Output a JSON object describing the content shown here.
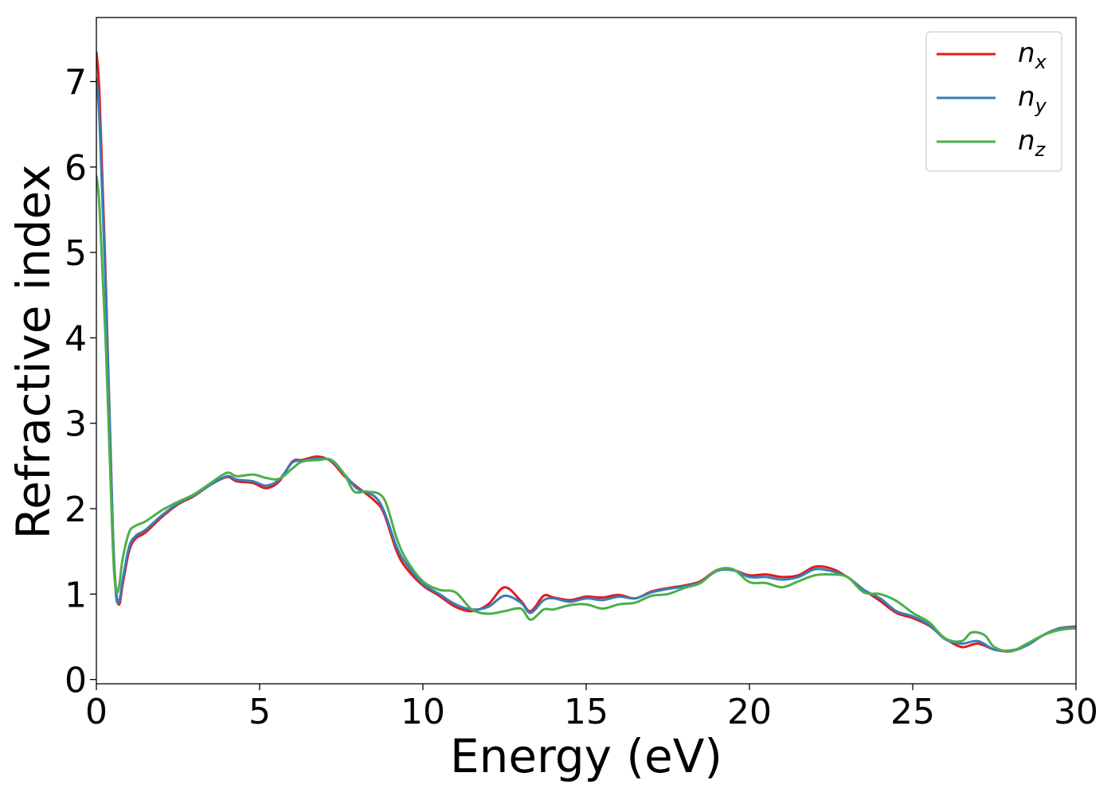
{
  "chart_data": {
    "type": "line",
    "xlabel": "Energy (eV)",
    "ylabel": "Refractive index",
    "xlim": [
      0,
      30
    ],
    "ylim": [
      -0.05,
      7.75
    ],
    "x_ticks": [
      0,
      5,
      10,
      15,
      20,
      25,
      30
    ],
    "y_ticks": [
      0,
      1,
      2,
      3,
      4,
      5,
      6,
      7
    ],
    "grid": false,
    "legend_position": "top-right",
    "series": [
      {
        "name": "n",
        "subscript": "x",
        "color": "#e41a1c",
        "x": [
          0,
          0.1,
          0.3,
          0.5,
          0.6,
          0.7,
          0.8,
          1.0,
          1.2,
          1.5,
          2.0,
          2.5,
          3.0,
          3.5,
          4.0,
          4.3,
          4.8,
          5.2,
          5.6,
          6.0,
          6.3,
          6.8,
          7.2,
          7.6,
          8.0,
          8.5,
          8.8,
          9.2,
          9.5,
          10.0,
          10.5,
          11.0,
          11.5,
          12.0,
          12.5,
          13.0,
          13.3,
          13.7,
          14.0,
          14.5,
          15.0,
          15.5,
          16.0,
          16.5,
          17.0,
          17.5,
          18.0,
          18.5,
          19.0,
          19.5,
          20.0,
          20.5,
          21.0,
          21.5,
          22.0,
          22.5,
          23.0,
          23.5,
          24.0,
          24.5,
          25.0,
          25.5,
          26.0,
          26.5,
          27.0,
          27.5,
          28.0,
          28.5,
          29.0,
          29.5,
          30.0
        ],
        "y": [
          7.35,
          6.8,
          4.5,
          1.8,
          1.05,
          0.88,
          1.1,
          1.5,
          1.65,
          1.72,
          1.9,
          2.05,
          2.15,
          2.28,
          2.37,
          2.32,
          2.3,
          2.24,
          2.32,
          2.55,
          2.57,
          2.61,
          2.55,
          2.38,
          2.25,
          2.1,
          1.95,
          1.5,
          1.3,
          1.1,
          0.98,
          0.85,
          0.8,
          0.88,
          1.08,
          0.92,
          0.8,
          0.98,
          0.96,
          0.93,
          0.97,
          0.96,
          0.99,
          0.95,
          1.03,
          1.07,
          1.1,
          1.15,
          1.28,
          1.28,
          1.22,
          1.23,
          1.2,
          1.22,
          1.32,
          1.3,
          1.2,
          1.05,
          0.92,
          0.78,
          0.72,
          0.63,
          0.48,
          0.38,
          0.42,
          0.35,
          0.33,
          0.4,
          0.52,
          0.6,
          0.62
        ]
      },
      {
        "name": "n",
        "subscript": "y",
        "color": "#377eb8",
        "x": [
          0,
          0.1,
          0.3,
          0.5,
          0.6,
          0.7,
          0.8,
          1.0,
          1.2,
          1.5,
          2.0,
          2.5,
          3.0,
          3.5,
          4.0,
          4.3,
          4.8,
          5.2,
          5.6,
          6.0,
          6.3,
          6.8,
          7.2,
          7.6,
          8.0,
          8.5,
          8.8,
          9.2,
          9.5,
          10.0,
          10.5,
          11.0,
          11.5,
          12.0,
          12.5,
          13.0,
          13.3,
          13.7,
          14.0,
          14.5,
          15.0,
          15.5,
          16.0,
          16.5,
          17.0,
          17.5,
          18.0,
          18.5,
          19.0,
          19.5,
          20.0,
          20.5,
          21.0,
          21.5,
          22.0,
          22.5,
          23.0,
          23.5,
          24.0,
          24.5,
          25.0,
          25.5,
          26.0,
          26.5,
          27.0,
          27.5,
          28.0,
          28.5,
          29.0,
          29.5,
          30.0
        ],
        "y": [
          7.05,
          6.5,
          4.4,
          1.8,
          1.0,
          0.92,
          1.15,
          1.55,
          1.68,
          1.75,
          1.92,
          2.06,
          2.16,
          2.28,
          2.38,
          2.34,
          2.32,
          2.27,
          2.34,
          2.54,
          2.56,
          2.59,
          2.56,
          2.4,
          2.23,
          2.15,
          1.98,
          1.55,
          1.35,
          1.12,
          1.0,
          0.88,
          0.82,
          0.85,
          0.98,
          0.9,
          0.78,
          0.93,
          0.95,
          0.91,
          0.95,
          0.93,
          0.97,
          0.95,
          1.02,
          1.06,
          1.09,
          1.14,
          1.27,
          1.28,
          1.2,
          1.2,
          1.17,
          1.2,
          1.29,
          1.27,
          1.2,
          1.05,
          0.95,
          0.8,
          0.74,
          0.64,
          0.47,
          0.42,
          0.45,
          0.35,
          0.34,
          0.4,
          0.52,
          0.6,
          0.61
        ]
      },
      {
        "name": "n",
        "subscript": "z",
        "color": "#4daf4a",
        "x": [
          0,
          0.1,
          0.3,
          0.5,
          0.6,
          0.7,
          0.8,
          1.0,
          1.2,
          1.5,
          2.0,
          2.5,
          3.0,
          3.5,
          4.0,
          4.3,
          4.8,
          5.2,
          5.6,
          6.0,
          6.3,
          6.8,
          7.2,
          7.6,
          7.9,
          8.3,
          8.8,
          9.2,
          9.5,
          10.0,
          10.5,
          11.0,
          11.5,
          12.0,
          12.5,
          13.0,
          13.3,
          13.7,
          14.0,
          14.5,
          15.0,
          15.5,
          16.0,
          16.5,
          17.0,
          17.5,
          18.0,
          18.5,
          19.0,
          19.5,
          20.0,
          20.5,
          21.0,
          21.5,
          22.0,
          22.5,
          23.0,
          23.5,
          24.0,
          24.5,
          25.0,
          25.5,
          26.0,
          26.5,
          26.8,
          27.2,
          27.5,
          28.0,
          28.5,
          29.0,
          29.5,
          30.0
        ],
        "y": [
          5.9,
          5.5,
          3.8,
          1.6,
          1.05,
          1.1,
          1.4,
          1.72,
          1.8,
          1.85,
          1.98,
          2.08,
          2.17,
          2.3,
          2.42,
          2.38,
          2.4,
          2.36,
          2.35,
          2.47,
          2.55,
          2.57,
          2.57,
          2.4,
          2.2,
          2.2,
          2.12,
          1.65,
          1.4,
          1.15,
          1.05,
          1.02,
          0.82,
          0.77,
          0.8,
          0.83,
          0.7,
          0.82,
          0.82,
          0.87,
          0.88,
          0.83,
          0.88,
          0.9,
          0.98,
          1.0,
          1.07,
          1.13,
          1.28,
          1.29,
          1.14,
          1.13,
          1.08,
          1.15,
          1.22,
          1.23,
          1.2,
          1.02,
          1.0,
          0.92,
          0.78,
          0.67,
          0.48,
          0.45,
          0.55,
          0.52,
          0.38,
          0.33,
          0.42,
          0.52,
          0.58,
          0.6
        ]
      }
    ]
  }
}
